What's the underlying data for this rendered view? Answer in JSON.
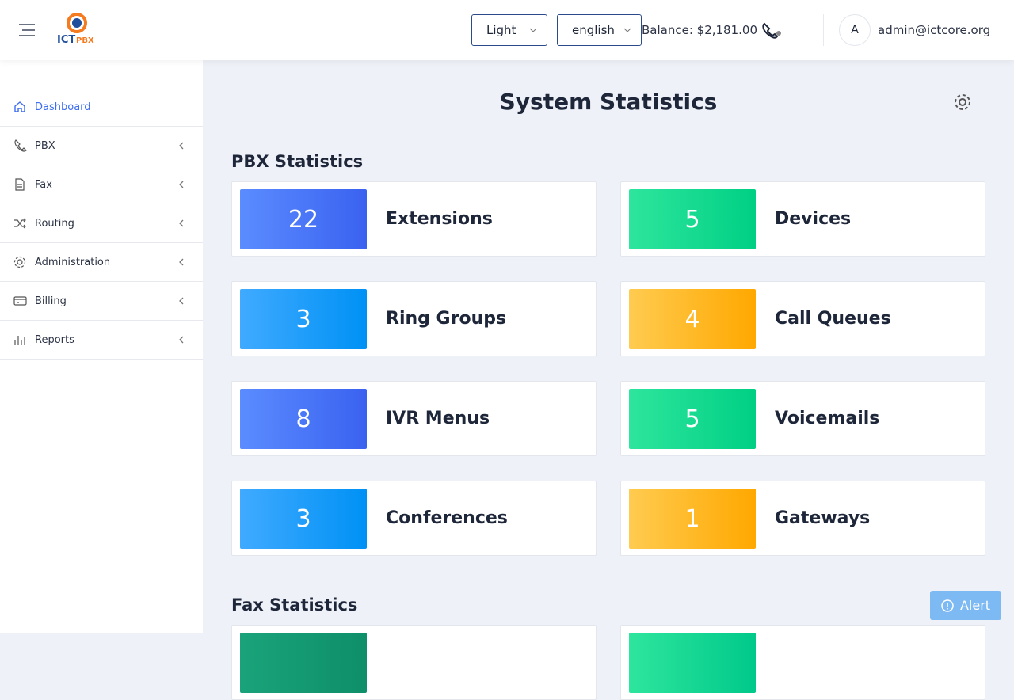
{
  "header": {
    "logo": {
      "prefix": "ICT",
      "suffix": "PBX"
    },
    "theme": "Light",
    "language": "english",
    "balance": "Balance: $2,181.00",
    "avatar": "A",
    "user": "admin@ictcore.org"
  },
  "sidebar": {
    "items": [
      "Dashboard",
      "PBX",
      "Fax",
      "Routing",
      "Administration",
      "Billing",
      "Reports"
    ]
  },
  "main": {
    "title": "System Statistics",
    "pbx_section": {
      "title": "PBX Statistics",
      "cards": [
        {
          "value": 22,
          "label": "Extensions",
          "color": "blue"
        },
        {
          "value": 5,
          "label": "Devices",
          "color": "green"
        },
        {
          "value": 3,
          "label": "Ring Groups",
          "color": "sky"
        },
        {
          "value": 4,
          "label": "Call Queues",
          "color": "orange"
        },
        {
          "value": 8,
          "label": "IVR Menus",
          "color": "blue"
        },
        {
          "value": 5,
          "label": "Voicemails",
          "color": "green"
        },
        {
          "value": 3,
          "label": "Conferences",
          "color": "sky"
        },
        {
          "value": 1,
          "label": "Gateways",
          "color": "orange"
        }
      ]
    },
    "fax_section": {
      "title": "Fax Statistics"
    }
  },
  "alert": "Alert"
}
